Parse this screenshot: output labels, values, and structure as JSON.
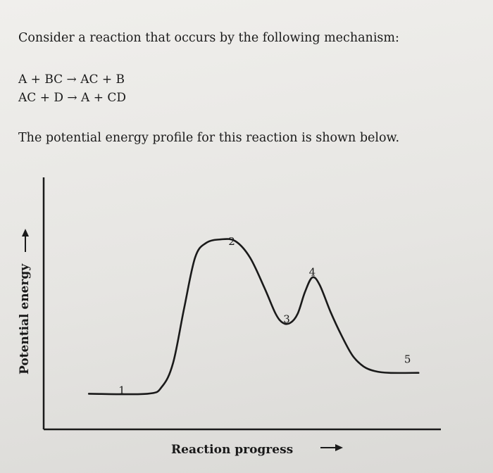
{
  "text": {
    "intro": "Consider a reaction that occurs by the following mechanism:",
    "mechanism": [
      "A + BC → AC + B",
      "AC + D → A + CD"
    ],
    "profile_note": "The potential energy profile for this reaction is shown below."
  },
  "chart_data": {
    "type": "line",
    "xlabel": "Reaction progress",
    "ylabel": "Potential energy",
    "axis_arrows": true,
    "grid": false,
    "legend": "none",
    "ticks": false,
    "xlim": [
      0,
      10
    ],
    "ylim": [
      0,
      10
    ],
    "points": [
      {
        "label": "1",
        "x": 1.5,
        "y": 0.8
      },
      {
        "label": "2",
        "x": 4.5,
        "y": 9.0
      },
      {
        "label": "3",
        "x": 6.0,
        "y": 4.7
      },
      {
        "label": "4",
        "x": 6.7,
        "y": 7.3
      },
      {
        "label": "5",
        "x": 9.3,
        "y": 2.5
      }
    ],
    "curve": {
      "x": [
        0.6,
        2.2,
        2.6,
        2.9,
        3.2,
        3.5,
        3.8,
        4.2,
        4.6,
        5.0,
        5.4,
        5.7,
        5.9,
        6.1,
        6.3,
        6.5,
        6.7,
        6.9,
        7.2,
        7.5,
        7.8,
        8.1,
        8.4,
        8.8,
        9.6
      ],
      "y": [
        0.8,
        0.8,
        1.2,
        2.5,
        5.5,
        8.3,
        9.1,
        9.3,
        9.2,
        8.3,
        6.6,
        5.2,
        4.7,
        4.7,
        5.2,
        6.4,
        7.2,
        6.8,
        5.3,
        4.0,
        2.9,
        2.3,
        2.05,
        1.95,
        1.95
      ]
    }
  }
}
